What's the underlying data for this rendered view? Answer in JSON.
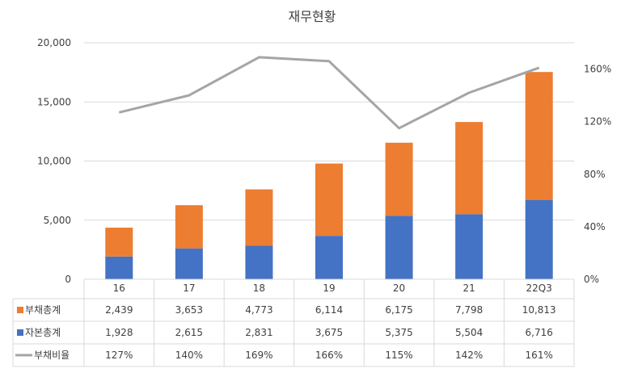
{
  "chart_data": {
    "type": "bar",
    "title": "재무현황",
    "categories": [
      "16",
      "17",
      "18",
      "19",
      "20",
      "21",
      "22Q3"
    ],
    "series": [
      {
        "name": "자본총계",
        "kind": "stacked-bar",
        "axis": "left",
        "color": "#4472c4",
        "values": [
          1928,
          2615,
          2831,
          3675,
          5375,
          5504,
          6716
        ],
        "labels": [
          "1,928",
          "2,615",
          "2,831",
          "3,675",
          "5,375",
          "5,504",
          "6,716"
        ]
      },
      {
        "name": "부채총계",
        "kind": "stacked-bar",
        "axis": "left",
        "color": "#ed7d31",
        "values": [
          2439,
          3653,
          4773,
          6114,
          6175,
          7798,
          10813
        ],
        "labels": [
          "2,439",
          "3,653",
          "4,773",
          "6,114",
          "6,175",
          "7,798",
          "10,813"
        ]
      },
      {
        "name": "부채비율",
        "kind": "line",
        "axis": "right",
        "color": "#a5a5a5",
        "values": [
          127,
          140,
          169,
          166,
          115,
          142,
          161
        ],
        "labels": [
          "127%",
          "140%",
          "169%",
          "166%",
          "115%",
          "142%",
          "161%"
        ]
      }
    ],
    "table_row_order": [
      "부채총계",
      "자본총계",
      "부채비율"
    ],
    "y_left": {
      "min": 0,
      "max": 20000,
      "step": 5000,
      "ticks": [
        "0",
        "5,000",
        "10,000",
        "15,000",
        "20,000"
      ]
    },
    "y_right": {
      "min": 0,
      "max": 180,
      "step": 40,
      "ticks": [
        "0%",
        "40%",
        "80%",
        "120%",
        "160%"
      ]
    },
    "grid": true,
    "legend": "data-table"
  }
}
